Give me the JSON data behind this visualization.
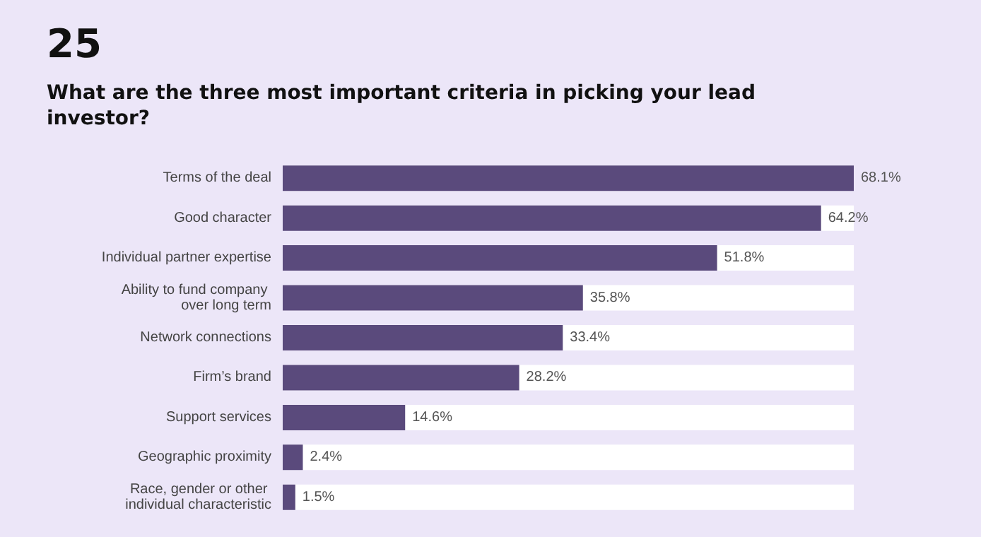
{
  "chart_data": {
    "type": "bar",
    "orientation": "horizontal",
    "title": "25",
    "subtitle": "What are the three most important criteria in picking your lead investor?",
    "categories": [
      "Terms of the deal",
      "Good character",
      "Individual partner expertise",
      "Ability to fund company over long term",
      "Network connections",
      "Firm’s brand",
      "Support services",
      "Geographic proximity",
      "Race, gender or other individual characteristic"
    ],
    "values": [
      68.1,
      64.2,
      51.8,
      35.8,
      33.4,
      28.2,
      14.6,
      2.4,
      1.5
    ],
    "value_labels": [
      "68.1%",
      "64.2%",
      "51.8%",
      "35.8%",
      "33.4%",
      "28.2%",
      "14.6%",
      "2.4%",
      "1.5%"
    ],
    "color": "#5a4a7c"
  }
}
